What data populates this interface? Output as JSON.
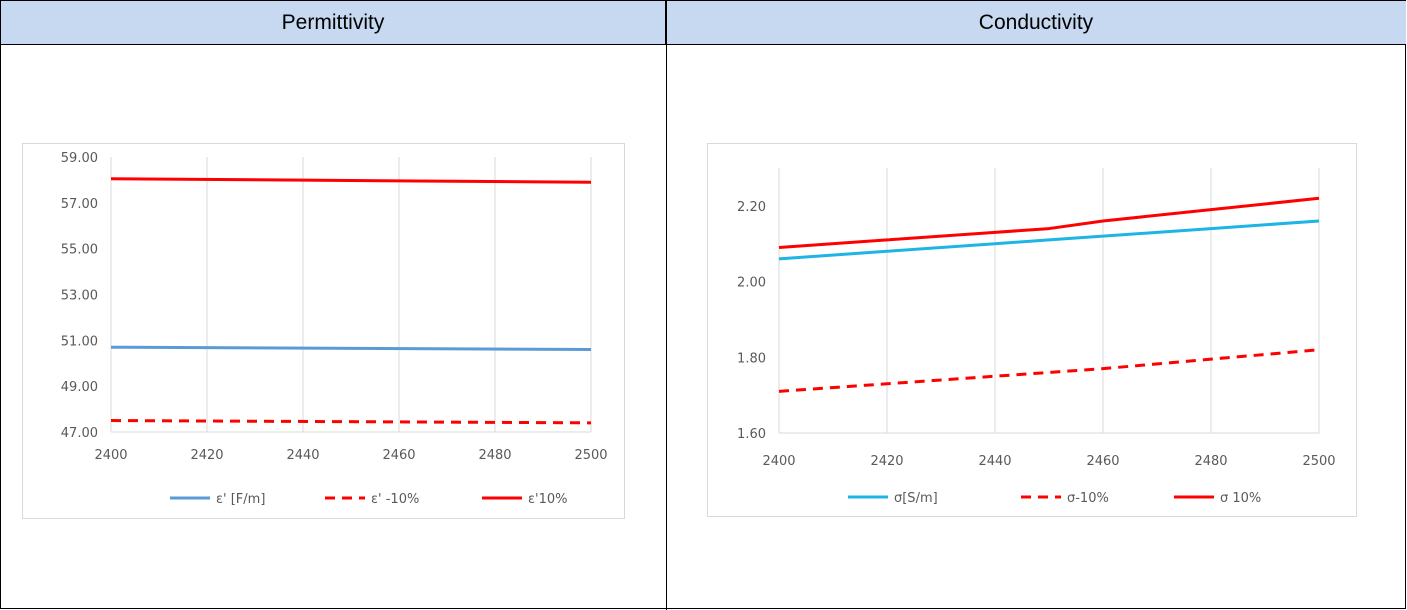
{
  "table": {
    "headers": [
      "Permittivity",
      "Conductivity"
    ]
  },
  "chart_data": [
    {
      "type": "line",
      "title": "",
      "x": [
        2400,
        2500
      ],
      "xticks": [
        2400,
        2420,
        2440,
        2460,
        2480,
        2500
      ],
      "ylim": [
        47.0,
        59.0
      ],
      "yticks": [
        "47.00",
        "49.00",
        "51.00",
        "53.00",
        "55.00",
        "57.00",
        "59.00"
      ],
      "grid": "vertical",
      "legend_position": "bottom",
      "series": [
        {
          "name": "ε' [F/m]",
          "values": [
            50.7,
            50.6
          ],
          "color": "#5b9bd5",
          "dash": false
        },
        {
          "name": "ε' -10%",
          "values": [
            47.5,
            47.4
          ],
          "color": "#ff0000",
          "dash": true
        },
        {
          "name": "ε'10%",
          "values": [
            58.05,
            57.9
          ],
          "color": "#ff0000",
          "dash": false
        }
      ]
    },
    {
      "type": "line",
      "title": "",
      "x": [
        2400,
        2420,
        2440,
        2450,
        2460,
        2480,
        2500
      ],
      "xticks": [
        2400,
        2420,
        2440,
        2460,
        2480,
        2500
      ],
      "ylim": [
        1.6,
        2.3
      ],
      "yticks": [
        "1.60",
        "1.80",
        "2.00",
        "2.20"
      ],
      "grid": "vertical",
      "legend_position": "bottom",
      "series": [
        {
          "name": "σ[S/m]",
          "values": [
            2.06,
            2.08,
            2.1,
            2.11,
            2.12,
            2.14,
            2.16
          ],
          "color": "#1eb4e6",
          "dash": false
        },
        {
          "name": "σ-10%",
          "values": [
            1.71,
            1.73,
            1.75,
            1.76,
            1.77,
            1.795,
            1.82
          ],
          "color": "#ff0000",
          "dash": true
        },
        {
          "name": "σ 10%",
          "values": [
            2.09,
            2.11,
            2.13,
            2.14,
            2.16,
            2.19,
            2.22
          ],
          "color": "#ff0000",
          "dash": false
        }
      ]
    }
  ]
}
